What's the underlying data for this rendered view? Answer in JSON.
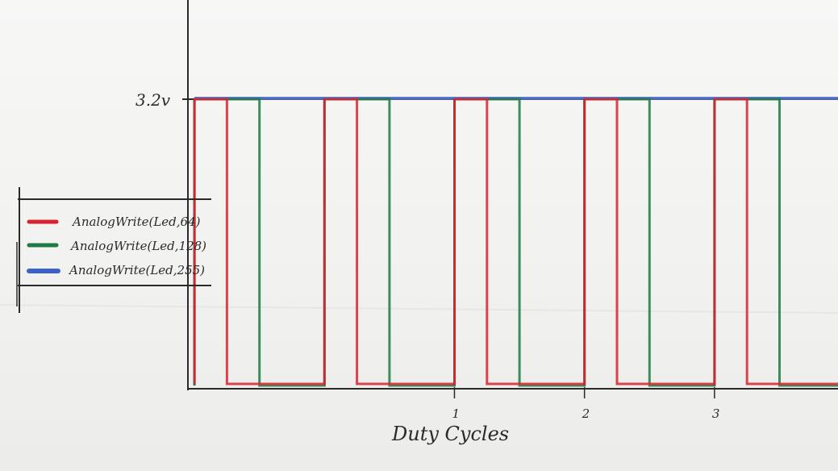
{
  "chart_data": {
    "type": "line",
    "xlabel": "Duty Cycles",
    "ylabel": "",
    "y_tick_label": "3.2v",
    "y_high": 3.2,
    "x_ticks": [
      "1",
      "2",
      "3"
    ],
    "xlim": [
      -1.05,
      3.95
    ],
    "ylim": [
      0,
      3.2
    ],
    "legend_position": "left",
    "series": [
      {
        "name": "AnalogWrite(Led,64)",
        "color": "#d8232f",
        "duty": 0.25,
        "period": 1,
        "start": -1
      },
      {
        "name": "AnalogWrite(Led,128)",
        "color": "#1e7a44",
        "duty": 0.5,
        "period": 1,
        "start": -1
      },
      {
        "name": "AnalogWrite(Led,255)",
        "color": "#3a62c9",
        "duty": 1.0,
        "period": 1,
        "start": -1
      }
    ]
  },
  "colors": {
    "axis": "#2a2a2a",
    "pencil_black": "#1f1f1f"
  }
}
